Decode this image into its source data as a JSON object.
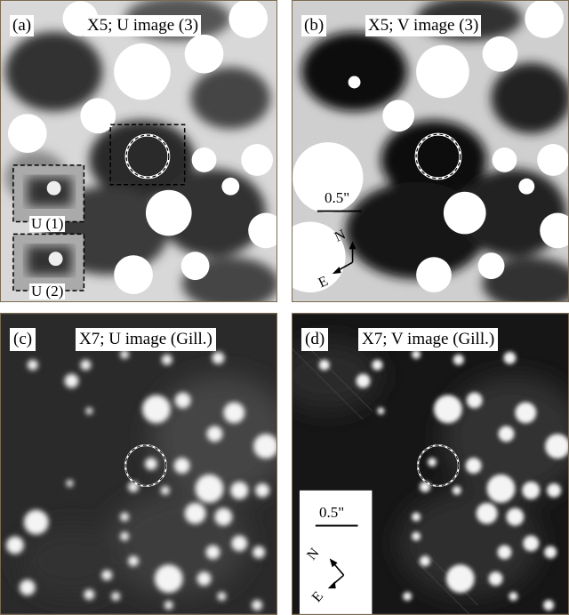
{
  "panels": {
    "a": {
      "label": "(a)",
      "title": "X5; U image (3)",
      "inset_1": "U (1)",
      "inset_2": "U (2)"
    },
    "b": {
      "label": "(b)",
      "title": "X5; V image (3)",
      "scale": "0.5\"",
      "north": "N",
      "east": "E"
    },
    "c": {
      "label": "(c)",
      "title": "X7; U image (Gill.)"
    },
    "d": {
      "label": "(d)",
      "title": "X7; V image (Gill.)",
      "scale": "0.5\"",
      "north": "N",
      "east": "E"
    }
  }
}
